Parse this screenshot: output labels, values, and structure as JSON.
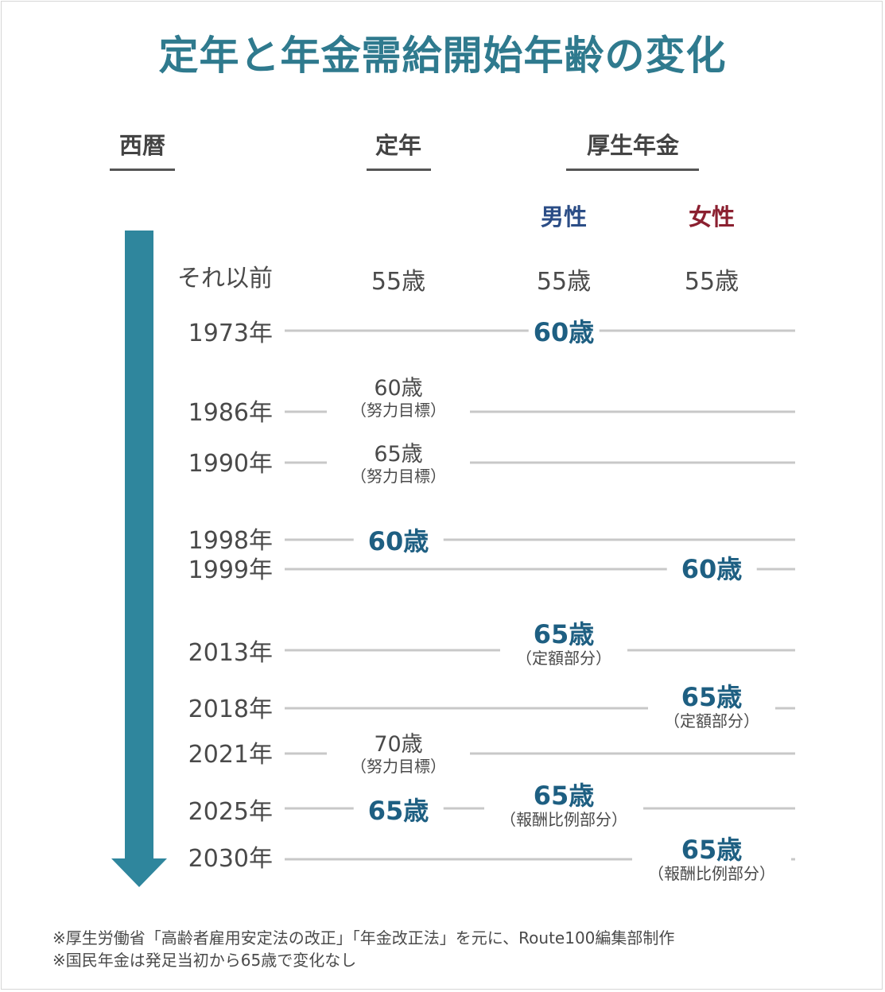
{
  "title": "定年と年金需給開始年齢の変化",
  "headers": {
    "year": "西暦",
    "retirement": "定年",
    "pension": "厚生年金",
    "male": "男性",
    "female": "女性"
  },
  "rows": {
    "r0": {
      "year": "それ以前",
      "retirement": "55歳",
      "male": "55歳",
      "female": "55歳"
    },
    "r1": {
      "year": "1973年",
      "male": "60歳"
    },
    "r2": {
      "year": "1986年",
      "retirement": "60歳",
      "retirement_note": "（努力目標）"
    },
    "r3": {
      "year": "1990年",
      "retirement": "65歳",
      "retirement_note": "（努力目標）"
    },
    "r4": {
      "year": "1998年",
      "retirement": "60歳"
    },
    "r5": {
      "year": "1999年",
      "female": "60歳"
    },
    "r6": {
      "year": "2013年",
      "male": "65歳",
      "male_note": "（定額部分）"
    },
    "r7": {
      "year": "2018年",
      "female": "65歳",
      "female_note": "（定額部分）"
    },
    "r8": {
      "year": "2021年",
      "retirement": "70歳",
      "retirement_note": "（努力目標）"
    },
    "r9": {
      "year": "2025年",
      "retirement": "65歳",
      "male": "65歳",
      "male_note": "（報酬比例部分）"
    },
    "r10": {
      "year": "2030年",
      "female": "65歳",
      "female_note": "（報酬比例部分）"
    }
  },
  "footer": {
    "line1": "※厚生労働省「高齢者雇用安定法の改正」「年金改正法」を元に、Route100編集部制作",
    "line2": "※国民年金は発足当初から65歳で変化なし"
  },
  "colors": {
    "title": "#2f7a8e",
    "arrow": "#2f869d",
    "male": "#2b4d86",
    "female": "#8b2030",
    "highlight": "#1e5f82"
  }
}
